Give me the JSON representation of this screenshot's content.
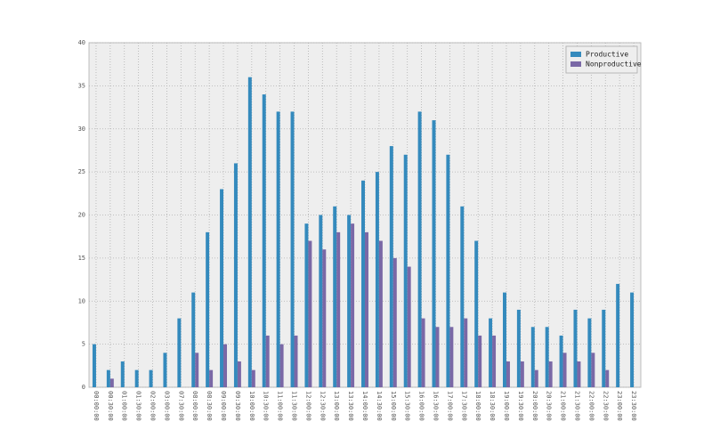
{
  "chart_data": {
    "type": "bar",
    "categories": [
      "00:00:00",
      "00:30:00",
      "01:00:00",
      "01:30:00",
      "02:00:00",
      "03:00:00",
      "07:30:00",
      "08:00:00",
      "08:30:00",
      "09:00:00",
      "09:30:00",
      "10:00:00",
      "10:30:00",
      "11:00:00",
      "11:30:00",
      "12:00:00",
      "12:30:00",
      "13:00:00",
      "13:30:00",
      "14:00:00",
      "14:30:00",
      "15:00:00",
      "15:30:00",
      "16:00:00",
      "16:30:00",
      "17:00:00",
      "17:30:00",
      "18:00:00",
      "18:30:00",
      "19:00:00",
      "19:30:00",
      "20:00:00",
      "20:30:00",
      "21:00:00",
      "21:30:00",
      "22:00:00",
      "22:30:00",
      "23:00:00",
      "23:30:00"
    ],
    "series": [
      {
        "name": "Productive",
        "color": "#348ABD",
        "values": [
          5,
          2,
          3,
          2,
          2,
          4,
          8,
          11,
          18,
          23,
          26,
          36,
          34,
          32,
          32,
          19,
          20,
          21,
          20,
          24,
          25,
          28,
          27,
          32,
          31,
          27,
          21,
          17,
          8,
          11,
          9,
          7,
          7,
          6,
          9,
          8,
          9,
          12,
          11
        ]
      },
      {
        "name": "Nonproductive",
        "color": "#7A68A6",
        "values": [
          0,
          1,
          0,
          0,
          0,
          0,
          0,
          4,
          2,
          5,
          3,
          2,
          6,
          5,
          6,
          17,
          16,
          18,
          19,
          18,
          17,
          15,
          14,
          8,
          7,
          7,
          8,
          6,
          6,
          3,
          3,
          2,
          3,
          4,
          3,
          4,
          2,
          0,
          0
        ]
      }
    ],
    "ylim": [
      0,
      40
    ],
    "yticks": [
      0,
      5,
      10,
      15,
      20,
      25,
      30,
      35,
      40
    ],
    "grid": true,
    "legend": "upper right"
  }
}
